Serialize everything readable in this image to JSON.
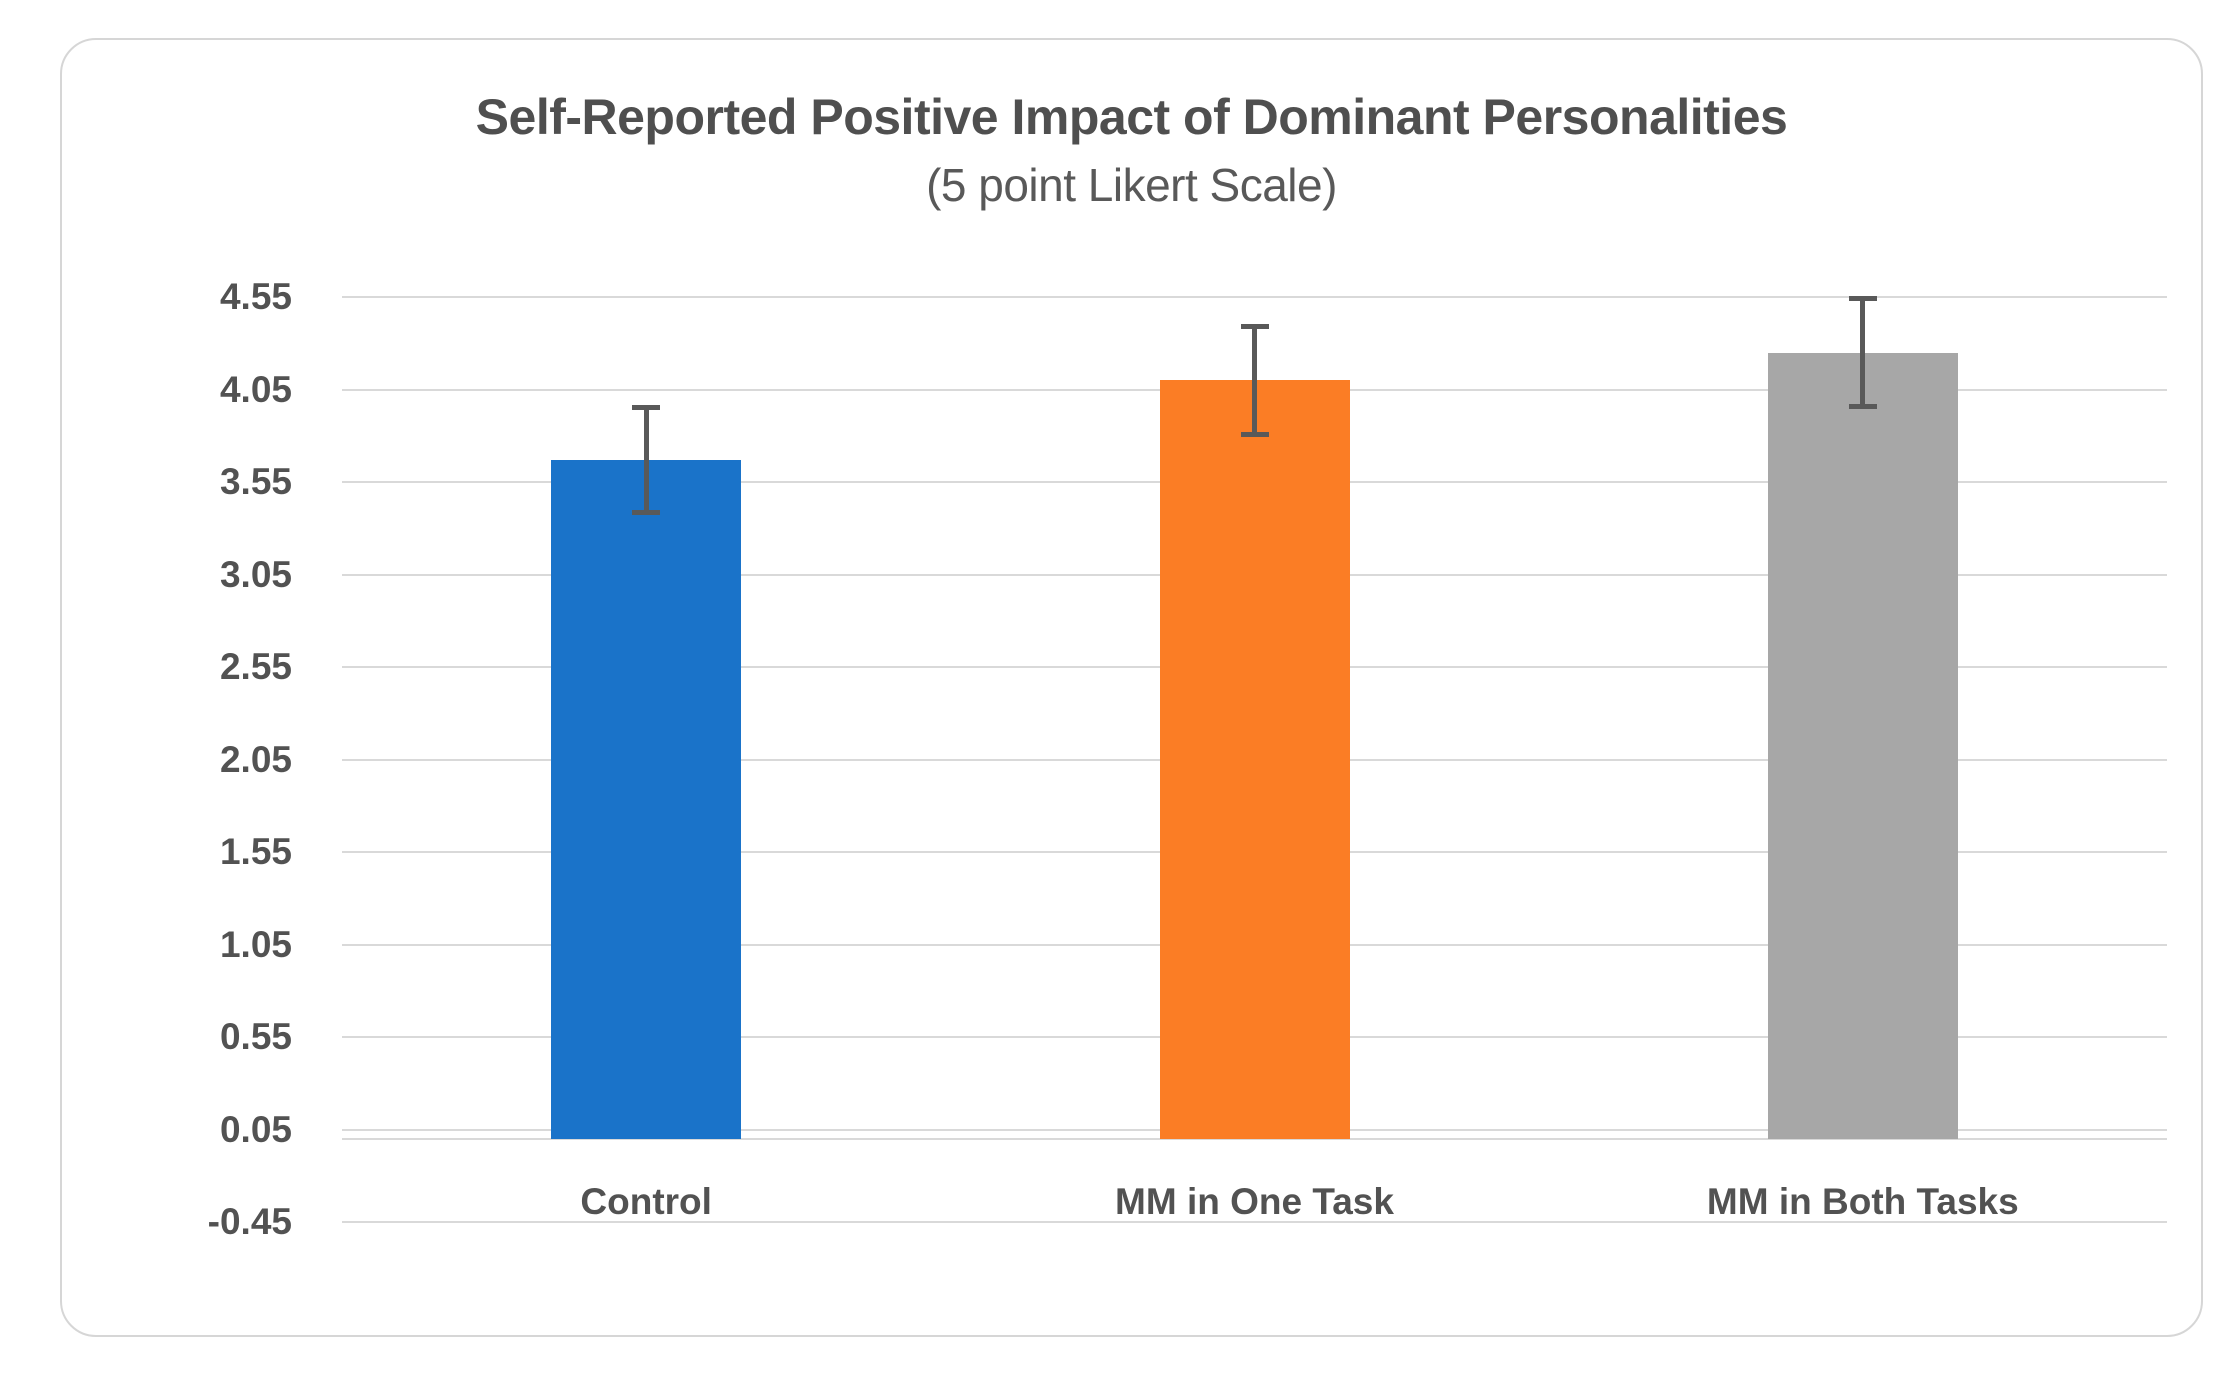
{
  "chart_data": {
    "type": "bar",
    "title": "Self-Reported Positive Impact of Dominant Personalities",
    "subtitle": "(5 point Likert Scale)",
    "categories": [
      "Control",
      "MM in One Task",
      "MM in Both Tasks"
    ],
    "values": [
      3.67,
      4.1,
      4.25
    ],
    "error_bars": [
      0.28,
      0.29,
      0.29
    ],
    "series_colors": [
      "#1a73c9",
      "#fb7d25",
      "#a7a7a7"
    ],
    "ylim": [
      -0.45,
      4.55
    ],
    "ytick_labels": [
      "4.55",
      "4.05",
      "3.55",
      "3.05",
      "2.55",
      "2.05",
      "1.55",
      "1.05",
      "0.55",
      "0.05",
      "-0.45"
    ],
    "ytick_step": 0.5,
    "grid": true,
    "grid_color": "#d9d9d9",
    "axis_line_color": "#d9d9d9",
    "error_bar_color": "#595959",
    "text_color": "#525252",
    "legend": "none",
    "xlabel": "",
    "ylabel": ""
  }
}
